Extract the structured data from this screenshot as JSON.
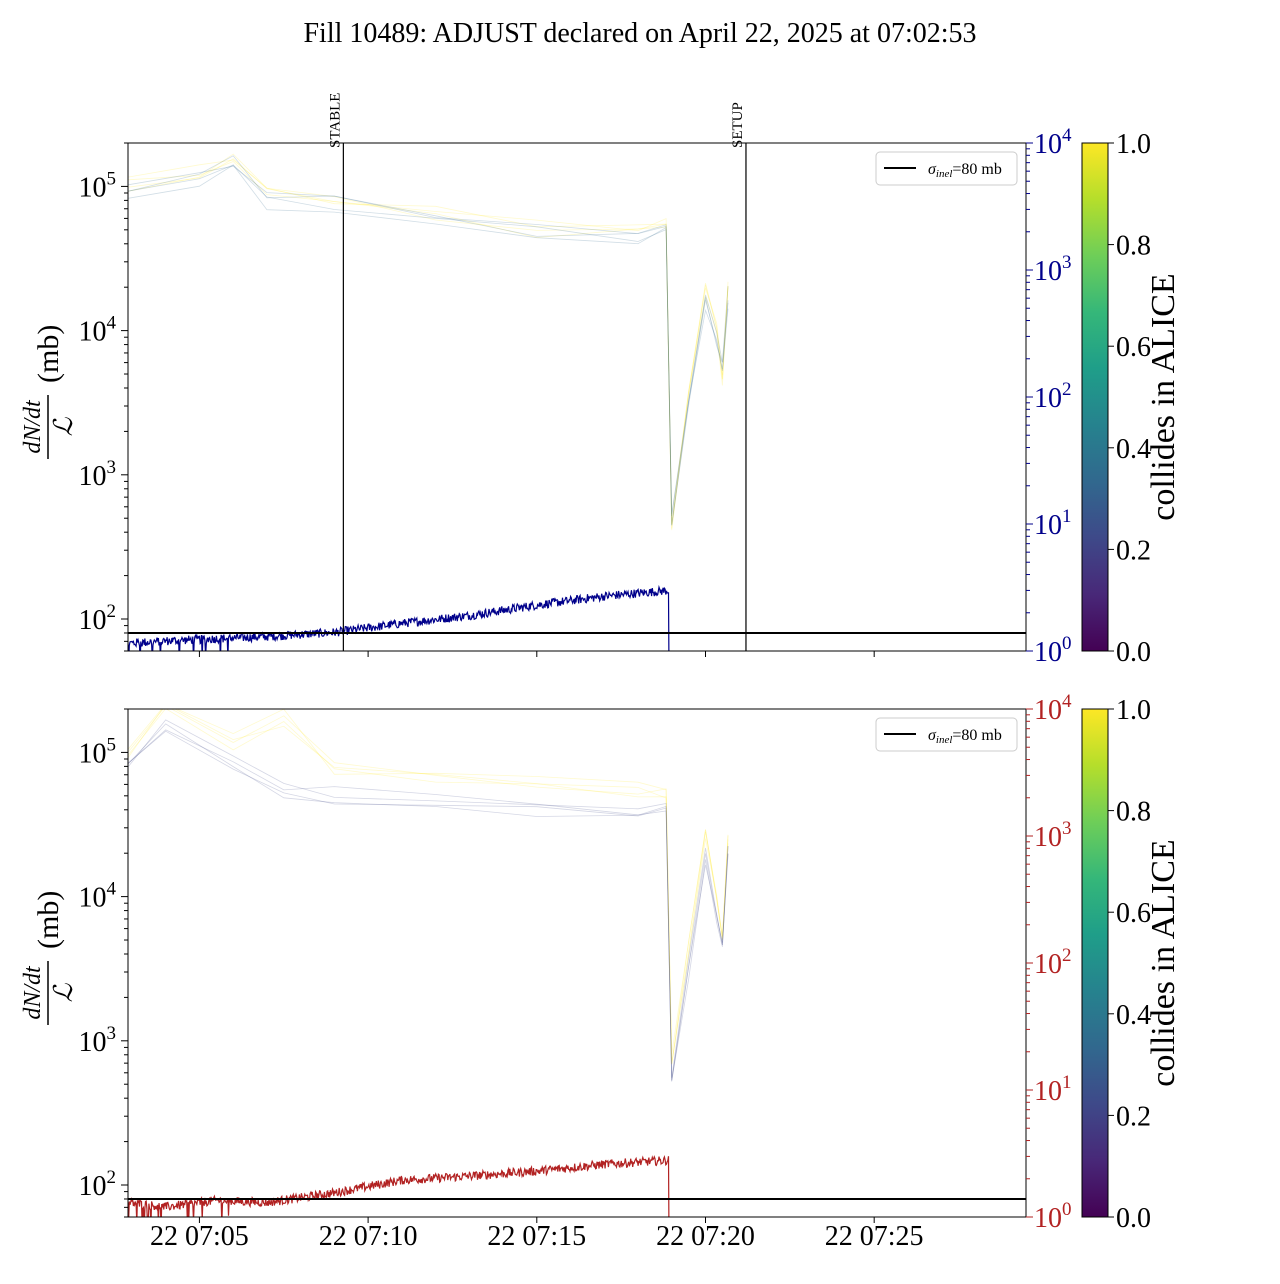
{
  "title": "Fill 10489: ADJUST declared on April 22, 2025 at 07:02:53",
  "colors": {
    "top_series": "#00008b",
    "bottom_series": "#b22222",
    "sigma_line": "#000000",
    "viridis": [
      "#440154",
      "#482878",
      "#3e4989",
      "#31688e",
      "#26828e",
      "#1f9e89",
      "#35b779",
      "#6ece58",
      "#b5de2b",
      "#fde725"
    ]
  },
  "chart_data": [
    {
      "type": "line",
      "panel": "top",
      "ylabel": "dN/dt / ℒ (mb)",
      "ylabel_numerator": "dN/dt",
      "ylabel_denominator": "ℒ",
      "ylabel_unit": "(mb)",
      "yscale": "log",
      "ylim": [
        60,
        200000
      ],
      "yticks": [
        {
          "value": 100,
          "base": "10",
          "exp": "2"
        },
        {
          "value": 1000,
          "base": "10",
          "exp": "3"
        },
        {
          "value": 10000,
          "base": "10",
          "exp": "4"
        },
        {
          "value": 100000,
          "base": "10",
          "exp": "5"
        }
      ],
      "y2_scale": "log",
      "y2_lim": [
        1,
        10000
      ],
      "y2_ticks": [
        {
          "value": 1,
          "base": "10",
          "exp": "0"
        },
        {
          "value": 10,
          "base": "10",
          "exp": "1"
        },
        {
          "value": 100,
          "base": "10",
          "exp": "2"
        },
        {
          "value": 1000,
          "base": "10",
          "exp": "3"
        },
        {
          "value": 10000,
          "base": "10",
          "exp": "4"
        }
      ],
      "y2_color": "#00008b",
      "xlim": [
        "2025-04-22 07:02:53",
        "2025-04-22 07:29:30"
      ],
      "xticks": [
        "2025-04-22 07:05",
        "2025-04-22 07:10",
        "2025-04-22 07:15",
        "2025-04-22 07:20",
        "2025-04-22 07:25"
      ],
      "xticklabels_visible": false,
      "vlines": [
        {
          "x": "2025-04-22 07:09:16",
          "label": "STABLE"
        },
        {
          "x": "2025-04-22 07:21:12",
          "label": "SETUP"
        }
      ],
      "hline": {
        "y": 80,
        "label_sym": "σ",
        "label_sub": "inel",
        "label_val": "=80 mb"
      },
      "legend_position": "top-right",
      "series": [
        {
          "role": "main-y2",
          "color": "#00008b",
          "x_start": "2025-04-22 07:02:53",
          "x_end": "2025-04-22 07:19:00",
          "points": [
            [
              "2025-04-22 07:02:53",
              1.15
            ],
            [
              "2025-04-22 07:04:00",
              1.2
            ],
            [
              "2025-04-22 07:05:30",
              1.25
            ],
            [
              "2025-04-22 07:07:00",
              1.3
            ],
            [
              "2025-04-22 07:09:00",
              1.4
            ],
            [
              "2025-04-22 07:11:00",
              1.65
            ],
            [
              "2025-04-22 07:13:00",
              1.9
            ],
            [
              "2025-04-22 07:15:00",
              2.3
            ],
            [
              "2025-04-22 07:17:00",
              2.7
            ],
            [
              "2025-04-22 07:18:55",
              3.0
            ]
          ]
        },
        {
          "role": "bunch-faint",
          "color_value": 0.95,
          "points": [
            [
              "2025-04-22 07:02:53",
              95000
            ],
            [
              "2025-04-22 07:05:00",
              120000
            ],
            [
              "2025-04-22 07:06:00",
              150000
            ],
            [
              "2025-04-22 07:07:00",
              85000
            ],
            [
              "2025-04-22 07:09:00",
              75000
            ],
            [
              "2025-04-22 07:12:00",
              62000
            ],
            [
              "2025-04-22 07:15:00",
              48000
            ],
            [
              "2025-04-22 07:18:00",
              46000
            ],
            [
              "2025-04-22 07:18:50",
              52000
            ],
            [
              "2025-04-22 07:19:00",
              420
            ],
            [
              "2025-04-22 07:19:30",
              3500
            ],
            [
              "2025-04-22 07:20:00",
              18000
            ],
            [
              "2025-04-22 07:20:20",
              9000
            ],
            [
              "2025-04-22 07:20:30",
              4500
            ],
            [
              "2025-04-22 07:20:40",
              20000
            ]
          ]
        },
        {
          "role": "bunch-faint",
          "color_value": 0.3,
          "points": [
            [
              "2025-04-22 07:02:53",
              88000
            ],
            [
              "2025-04-22 07:05:00",
              110000
            ],
            [
              "2025-04-22 07:06:00",
              135000
            ],
            [
              "2025-04-22 07:07:00",
              78000
            ],
            [
              "2025-04-22 07:09:00",
              70000
            ],
            [
              "2025-04-22 07:12:00",
              58000
            ],
            [
              "2025-04-22 07:15:00",
              45000
            ],
            [
              "2025-04-22 07:18:00",
              43000
            ],
            [
              "2025-04-22 07:18:50",
              48000
            ],
            [
              "2025-04-22 07:19:00",
              450
            ],
            [
              "2025-04-22 07:19:30",
              3000
            ],
            [
              "2025-04-22 07:20:00",
              15000
            ],
            [
              "2025-04-22 07:20:20",
              8000
            ],
            [
              "2025-04-22 07:20:30",
              5000
            ],
            [
              "2025-04-22 07:20:40",
              16000
            ]
          ]
        }
      ]
    },
    {
      "type": "line",
      "panel": "bottom",
      "ylabel": "dN/dt / ℒ (mb)",
      "ylabel_numerator": "dN/dt",
      "ylabel_denominator": "ℒ",
      "ylabel_unit": "(mb)",
      "yscale": "log",
      "ylim": [
        60,
        200000
      ],
      "yticks": [
        {
          "value": 100,
          "base": "10",
          "exp": "2"
        },
        {
          "value": 1000,
          "base": "10",
          "exp": "3"
        },
        {
          "value": 10000,
          "base": "10",
          "exp": "4"
        },
        {
          "value": 100000,
          "base": "10",
          "exp": "5"
        }
      ],
      "y2_scale": "log",
      "y2_lim": [
        1,
        10000
      ],
      "y2_ticks": [
        {
          "value": 1,
          "base": "10",
          "exp": "0"
        },
        {
          "value": 10,
          "base": "10",
          "exp": "1"
        },
        {
          "value": 100,
          "base": "10",
          "exp": "2"
        },
        {
          "value": 1000,
          "base": "10",
          "exp": "3"
        },
        {
          "value": 10000,
          "base": "10",
          "exp": "4"
        }
      ],
      "y2_color": "#b22222",
      "xlim": [
        "2025-04-22 07:02:53",
        "2025-04-22 07:29:30"
      ],
      "xticks": [
        "2025-04-22 07:05",
        "2025-04-22 07:10",
        "2025-04-22 07:15",
        "2025-04-22 07:20",
        "2025-04-22 07:25"
      ],
      "xticklabels": [
        "22 07:05",
        "22 07:10",
        "22 07:15",
        "22 07:20",
        "22 07:25"
      ],
      "xticklabels_visible": true,
      "vlines": [],
      "hline": {
        "y": 80,
        "label_sym": "σ",
        "label_sub": "inel",
        "label_val": "=80 mb"
      },
      "legend_position": "top-right",
      "series": [
        {
          "role": "main-y2",
          "color": "#b22222",
          "x_start": "2025-04-22 07:02:53",
          "x_end": "2025-04-22 07:19:00",
          "points": [
            [
              "2025-04-22 07:02:53",
              1.3
            ],
            [
              "2025-04-22 07:04:00",
              1.2
            ],
            [
              "2025-04-22 07:05:30",
              1.35
            ],
            [
              "2025-04-22 07:07:00",
              1.3
            ],
            [
              "2025-04-22 07:09:00",
              1.55
            ],
            [
              "2025-04-22 07:11:00",
              1.95
            ],
            [
              "2025-04-22 07:13:00",
              2.1
            ],
            [
              "2025-04-22 07:15:00",
              2.3
            ],
            [
              "2025-04-22 07:17:00",
              2.6
            ],
            [
              "2025-04-22 07:18:55",
              2.8
            ]
          ]
        },
        {
          "role": "bunch-faint",
          "color_value": 0.95,
          "points": [
            [
              "2025-04-22 07:02:53",
              95000
            ],
            [
              "2025-04-22 07:04:00",
              210000
            ],
            [
              "2025-04-22 07:06:00",
              110000
            ],
            [
              "2025-04-22 07:07:30",
              160000
            ],
            [
              "2025-04-22 07:09:00",
              70000
            ],
            [
              "2025-04-22 07:12:00",
              63000
            ],
            [
              "2025-04-22 07:15:00",
              55000
            ],
            [
              "2025-04-22 07:18:00",
              50000
            ],
            [
              "2025-04-22 07:18:50",
              52000
            ],
            [
              "2025-04-22 07:19:00",
              650
            ],
            [
              "2025-04-22 07:19:30",
              4000
            ],
            [
              "2025-04-22 07:20:00",
              25000
            ],
            [
              "2025-04-22 07:20:20",
              9000
            ],
            [
              "2025-04-22 07:20:30",
              5000
            ],
            [
              "2025-04-22 07:20:40",
              25000
            ]
          ]
        },
        {
          "role": "bunch-faint",
          "color_value": 0.2,
          "points": [
            [
              "2025-04-22 07:02:53",
              75000
            ],
            [
              "2025-04-22 07:04:00",
              150000
            ],
            [
              "2025-04-22 07:06:00",
              85000
            ],
            [
              "2025-04-22 07:07:30",
              52000
            ],
            [
              "2025-04-22 07:09:00",
              48000
            ],
            [
              "2025-04-22 07:12:00",
              45000
            ],
            [
              "2025-04-22 07:15:00",
              38000
            ],
            [
              "2025-04-22 07:18:00",
              36000
            ],
            [
              "2025-04-22 07:18:50",
              38000
            ],
            [
              "2025-04-22 07:19:00",
              550
            ],
            [
              "2025-04-22 07:19:30",
              3000
            ],
            [
              "2025-04-22 07:20:00",
              18000
            ],
            [
              "2025-04-22 07:20:20",
              7000
            ],
            [
              "2025-04-22 07:20:30",
              4000
            ],
            [
              "2025-04-22 07:20:40",
              20000
            ]
          ]
        }
      ]
    }
  ],
  "colorbar": {
    "label": "collides in ALICE",
    "ticks": [
      "0.0",
      "0.2",
      "0.4",
      "0.6",
      "0.8",
      "1.0"
    ],
    "range": [
      0,
      1
    ],
    "colormap": "viridis"
  }
}
